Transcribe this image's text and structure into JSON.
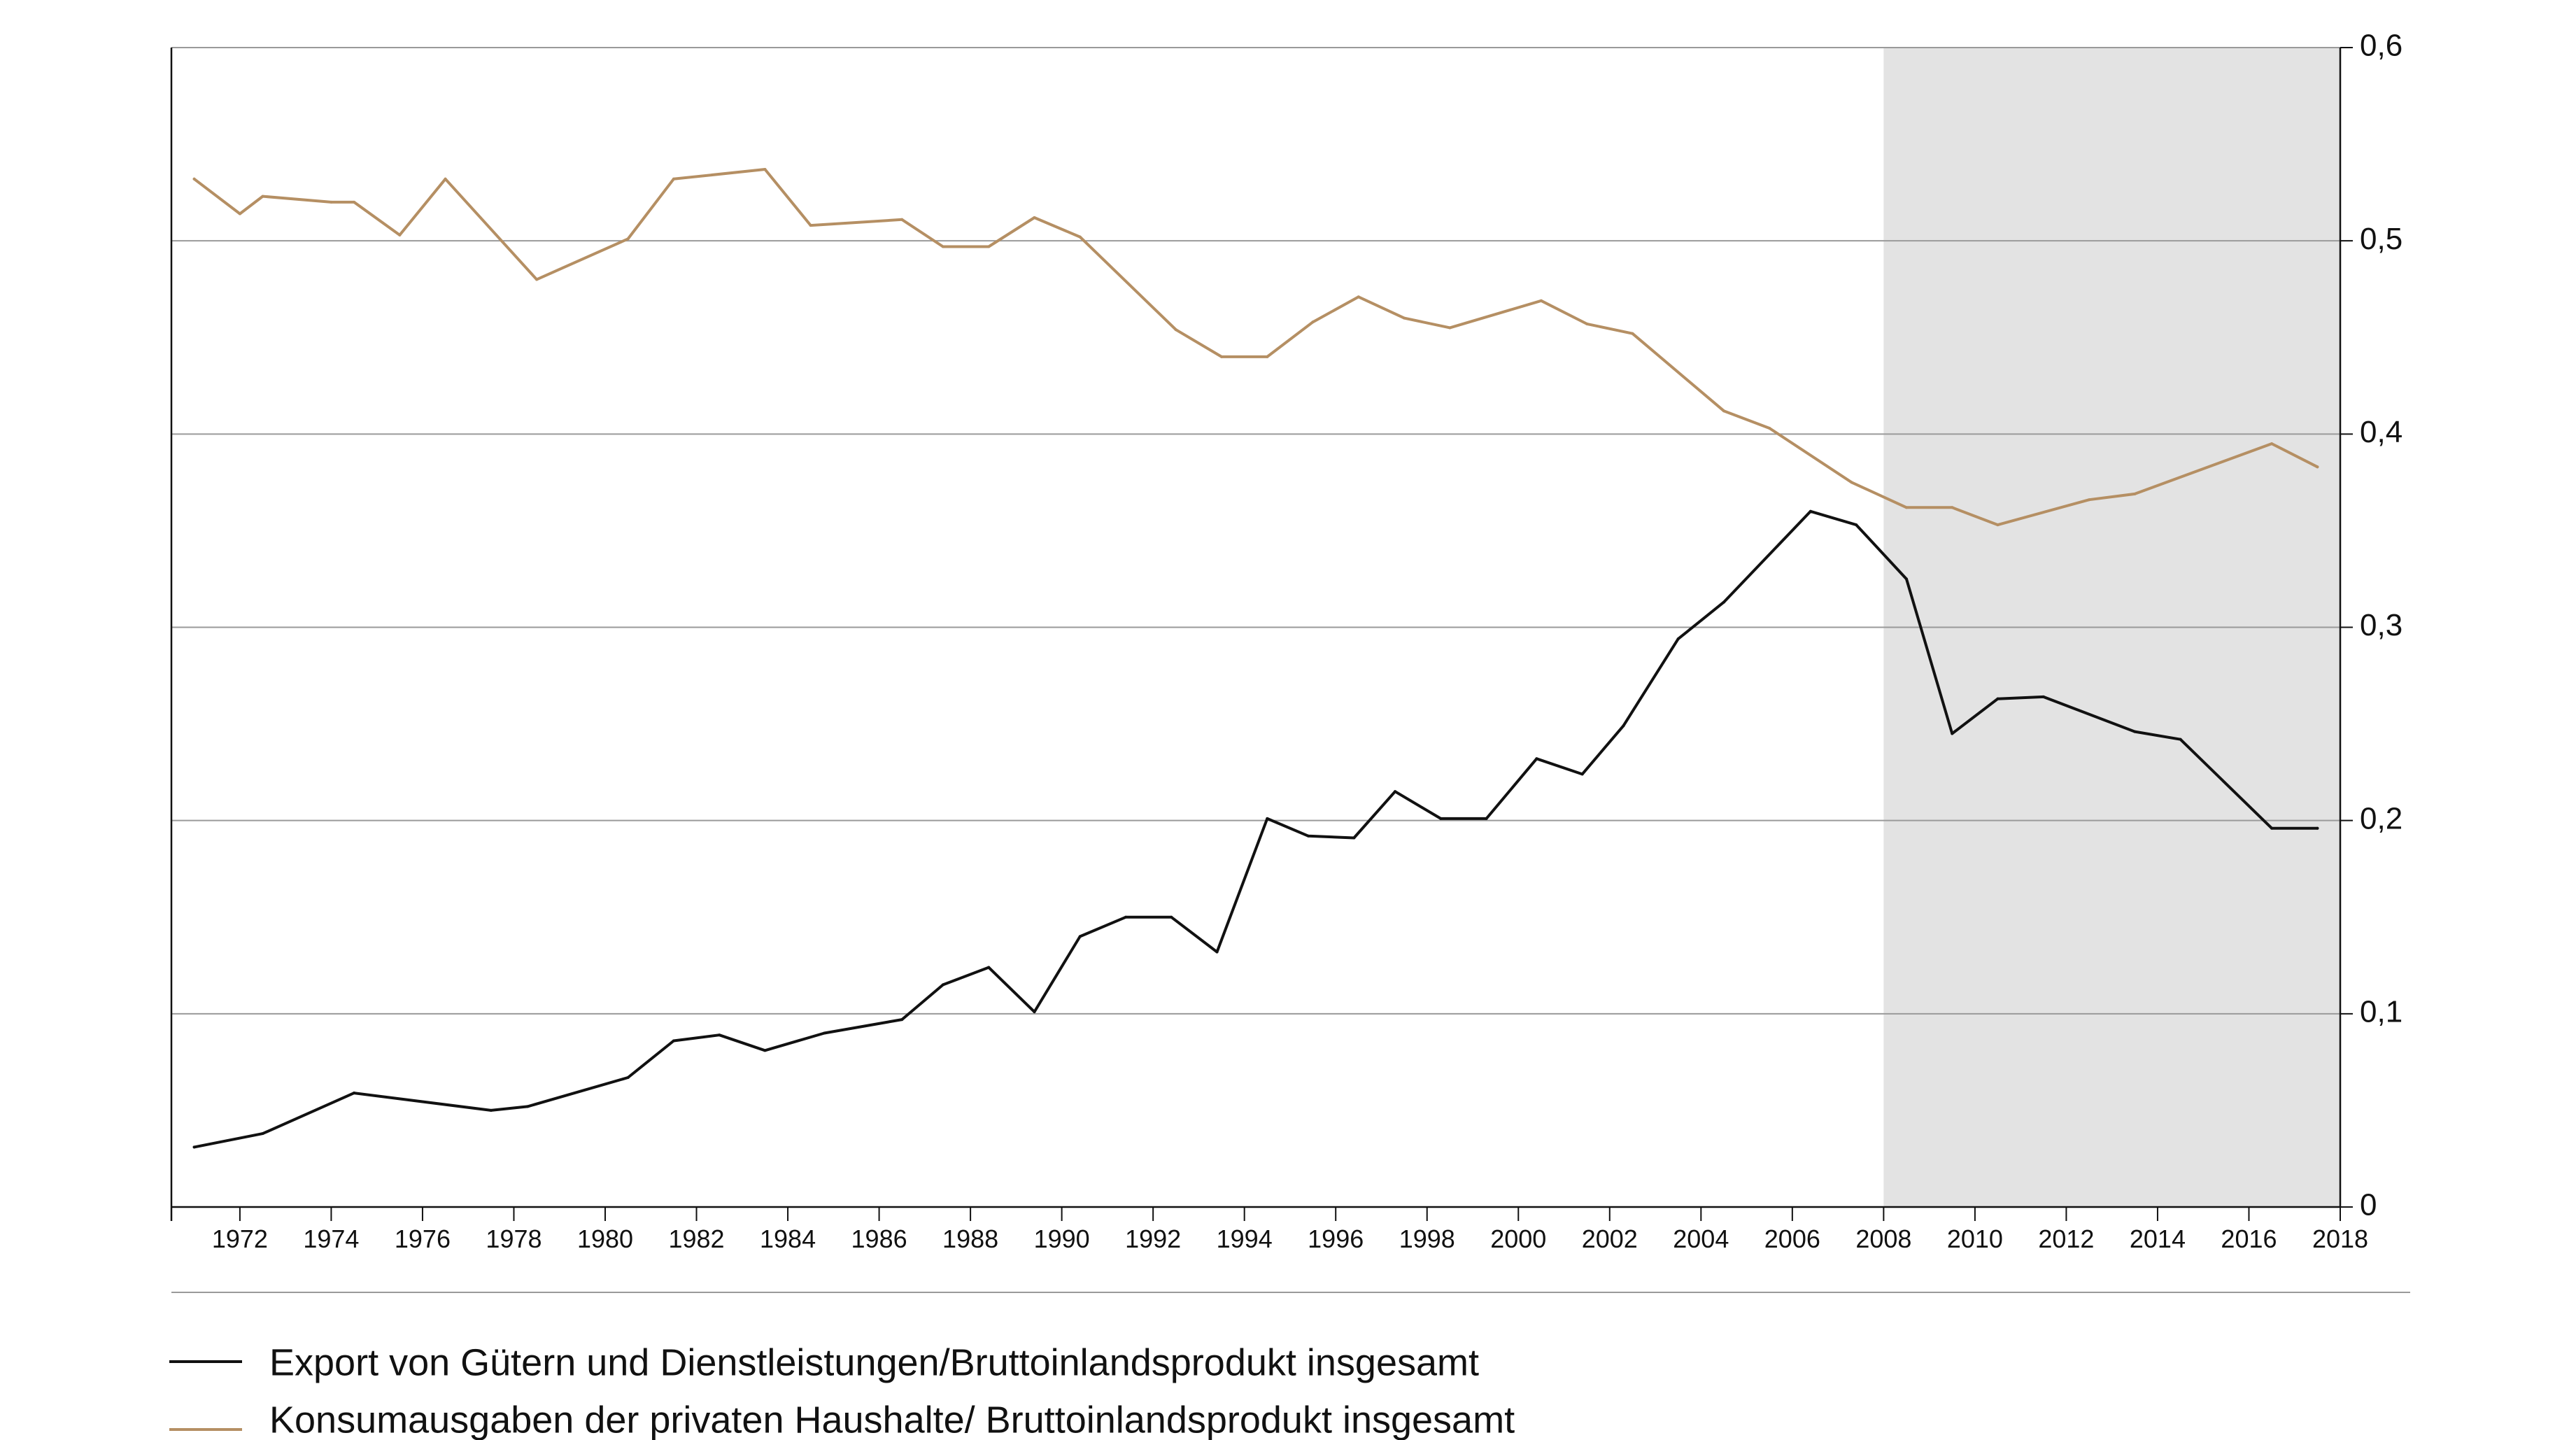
{
  "chart_data": {
    "type": "line",
    "title": "",
    "xlabel": "",
    "ylabel": "",
    "xlim": [
      1970.5,
      2018
    ],
    "ylim": [
      0,
      0.6
    ],
    "grid": "horizontal",
    "y_axis_side": "right",
    "legend_position": "bottom",
    "x_ticks": [
      1972,
      1974,
      1976,
      1978,
      1980,
      1982,
      1984,
      1986,
      1988,
      1990,
      1992,
      1994,
      1996,
      1998,
      2000,
      2002,
      2004,
      2006,
      2008,
      2010,
      2012,
      2014,
      2016,
      2018
    ],
    "x_tick_labels": [
      "1972",
      "1974",
      "1976",
      "1978",
      "1980",
      "1982",
      "1984",
      "1986",
      "1988",
      "1990",
      "1992",
      "1994",
      "1996",
      "1998",
      "2000",
      "2002",
      "2004",
      "2006",
      "2008",
      "2010",
      "2012",
      "2014",
      "2016",
      "2018"
    ],
    "y_ticks": [
      0,
      0.1,
      0.2,
      0.3,
      0.4,
      0.5,
      0.6
    ],
    "y_tick_labels": [
      "0",
      "0,1",
      "0,2",
      "0,3",
      "0,4",
      "0,5",
      "0,6"
    ],
    "shaded_region": {
      "x_start": 2008,
      "x_end": 2018,
      "color": "#e3e3e3"
    },
    "series": [
      {
        "name": "Export von Gütern und Dienstleistungen/Bruttoinlandsprodukt insgesamt",
        "color": "#111111",
        "x": [
          1971,
          1972.5,
          1974.5,
          1977.5,
          1978.3,
          1980.5,
          1981.5,
          1982.5,
          1983.5,
          1984.8,
          1986.5,
          1987.4,
          1988.4,
          1989.4,
          1990.4,
          1991.4,
          1992.4,
          1993.4,
          1994.5,
          1995.4,
          1996.4,
          1997.3,
          1998.3,
          1999.3,
          2000.4,
          2001.4,
          2002.3,
          2003.5,
          2004.5,
          2006.4,
          2007.4,
          2008.5,
          2009.5,
          2010.5,
          2011.5,
          2013.5,
          2014.5,
          2016.5,
          2017.5
        ],
        "values": [
          0.031,
          0.038,
          0.059,
          0.05,
          0.052,
          0.067,
          0.086,
          0.089,
          0.081,
          0.09,
          0.097,
          0.115,
          0.124,
          0.101,
          0.14,
          0.15,
          0.15,
          0.132,
          0.201,
          0.192,
          0.191,
          0.215,
          0.201,
          0.201,
          0.232,
          0.224,
          0.249,
          0.294,
          0.313,
          0.36,
          0.353,
          0.325,
          0.245,
          0.263,
          0.264,
          0.246,
          0.242,
          0.196,
          0.196
        ]
      },
      {
        "name": "Konsumausgaben der privaten Haushalte/ Bruttoinlandsprodukt insgesamt",
        "color": "#b58f63",
        "x": [
          1971,
          1972,
          1972.5,
          1974,
          1974.5,
          1975.5,
          1976.5,
          1978.5,
          1980.5,
          1981.5,
          1983.5,
          1984.5,
          1986.5,
          1987.4,
          1988.4,
          1989.4,
          1990.4,
          1992.5,
          1993.5,
          1994.5,
          1995.5,
          1996.5,
          1997.5,
          1998.5,
          2000.5,
          2001.5,
          2002.5,
          2004.5,
          2005.5,
          2007.3,
          2008.5,
          2009.5,
          2010.5,
          2012.5,
          2013.5,
          2016.5,
          2017.5
        ],
        "values": [
          0.532,
          0.514,
          0.523,
          0.52,
          0.52,
          0.503,
          0.532,
          0.48,
          0.501,
          0.532,
          0.537,
          0.508,
          0.511,
          0.497,
          0.497,
          0.512,
          0.502,
          0.454,
          0.44,
          0.44,
          0.458,
          0.471,
          0.46,
          0.455,
          0.469,
          0.457,
          0.452,
          0.412,
          0.403,
          0.375,
          0.362,
          0.362,
          0.353,
          0.366,
          0.369,
          0.395,
          0.383
        ]
      }
    ]
  }
}
